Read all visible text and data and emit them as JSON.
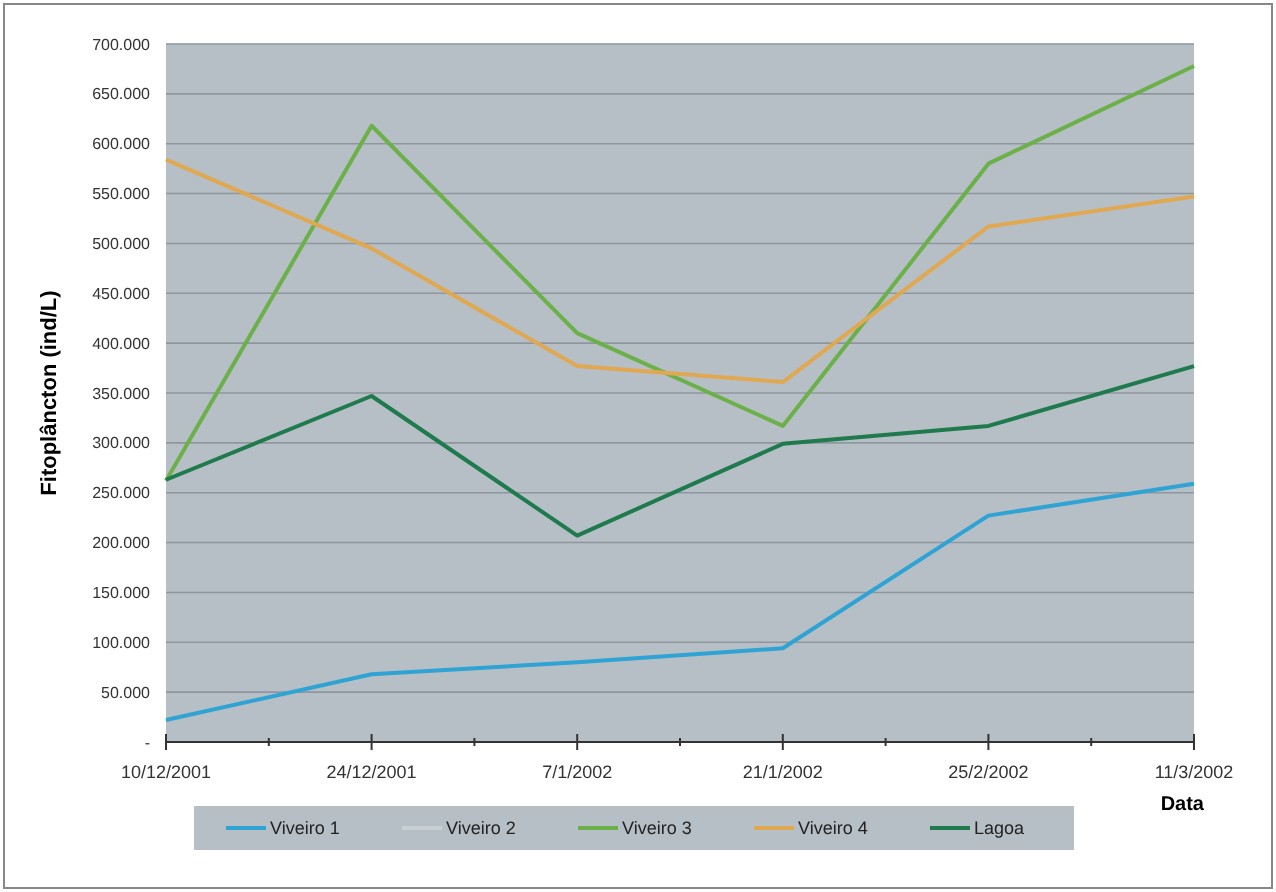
{
  "chart_data": {
    "type": "line",
    "xlabel": "Data",
    "ylabel": "Fitoplâncton (ind/L)",
    "categories": [
      "10/12/2001",
      "24/12/2001",
      "7/1/2002",
      "21/1/2002",
      "25/2/2002",
      "11/3/2002"
    ],
    "ylim": [
      0,
      700000
    ],
    "yticks": [
      {
        "value": 0,
        "label": "-"
      },
      {
        "value": 50000,
        "label": "50.000"
      },
      {
        "value": 100000,
        "label": "100.000"
      },
      {
        "value": 150000,
        "label": "150.000"
      },
      {
        "value": 200000,
        "label": "200.000"
      },
      {
        "value": 250000,
        "label": "250.000"
      },
      {
        "value": 300000,
        "label": "300.000"
      },
      {
        "value": 350000,
        "label": "350.000"
      },
      {
        "value": 400000,
        "label": "400.000"
      },
      {
        "value": 450000,
        "label": "450.000"
      },
      {
        "value": 500000,
        "label": "500.000"
      },
      {
        "value": 550000,
        "label": "550.000"
      },
      {
        "value": 600000,
        "label": "600.000"
      },
      {
        "value": 650000,
        "label": "650.000"
      },
      {
        "value": 700000,
        "label": "700.000"
      }
    ],
    "grid": "y",
    "legend": "bottom",
    "marker": "none",
    "line_style": "solid",
    "series": [
      {
        "name": "Viveiro 1",
        "color": "#2ea3d4",
        "values": [
          22000,
          68000,
          80000,
          94000,
          227000,
          259000
        ]
      },
      {
        "name": "Viveiro 2",
        "color": "#c8d0d4",
        "values": [
          null,
          null,
          null,
          null,
          null,
          null
        ]
      },
      {
        "name": "Viveiro 3",
        "color": "#6cb04a",
        "values": [
          262000,
          618000,
          410000,
          317000,
          580000,
          678000
        ]
      },
      {
        "name": "Viveiro 4",
        "color": "#e0a850",
        "values": [
          584000,
          495000,
          377000,
          361000,
          517000,
          547000
        ]
      },
      {
        "name": "Lagoa",
        "color": "#1f7a4e",
        "values": [
          263000,
          347000,
          207000,
          299000,
          317000,
          377000
        ]
      }
    ]
  }
}
